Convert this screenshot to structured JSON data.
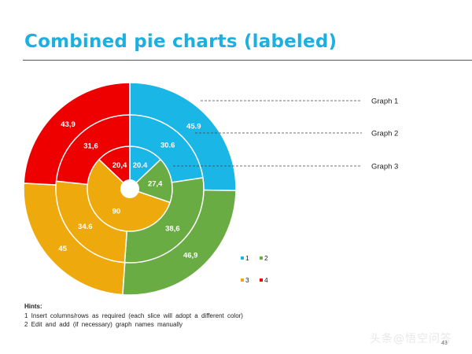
{
  "title": "Combined pie charts (labeled)",
  "chart_data": {
    "type": "pie",
    "categories": [
      "1",
      "2",
      "3",
      "4"
    ],
    "colors": [
      "#19b6e6",
      "#6aac44",
      "#eeaa0c",
      "#ee0000"
    ],
    "series": [
      {
        "name": "Graph 1",
        "values": [
          "45.9",
          "46,9",
          "45",
          "43,9"
        ]
      },
      {
        "name": "Graph 2",
        "values": [
          "30.6",
          "38,6",
          "34.6",
          "31,6"
        ]
      },
      {
        "name": "Graph 3",
        "values": [
          "20.4",
          "27,4",
          "90",
          "20,4"
        ]
      }
    ],
    "legend_position": "bottom-right"
  },
  "hints": {
    "title": "Hints:",
    "lines": [
      "1  Insert columns/rows as required (each slice will adopt a different color)",
      "2  Edit and add (if necessary) graph names manually"
    ]
  },
  "watermark": "头条@悟空问答",
  "page_number": "43"
}
